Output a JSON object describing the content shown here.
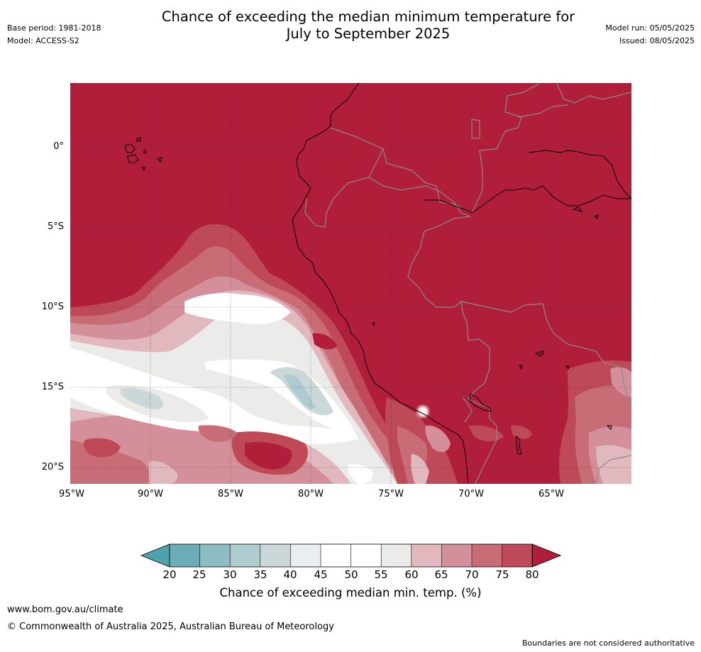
{
  "header": {
    "title_line1": "Chance of exceeding the median minimum temperature for",
    "title_line2": "July to September 2025",
    "base_period": "Base period: 1981-2018",
    "model": "Model: ACCESS-S2",
    "model_run": "Model run: 05/05/2025",
    "issued": "Issued: 08/05/2025"
  },
  "map": {
    "lat_labels": [
      "0°",
      "5°S",
      "10°S",
      "15°S",
      "20°S"
    ],
    "lon_labels": [
      "95°W",
      "90°W",
      "85°W",
      "80°W",
      "75°W",
      "70°W",
      "65°W"
    ],
    "lat_values": [
      0,
      -5,
      -10,
      -15,
      -20
    ],
    "lon_values": [
      -95,
      -90,
      -85,
      -80,
      -75,
      -70,
      -65
    ],
    "extent": {
      "lon_min": -95,
      "lon_max": -60,
      "lat_min": -21,
      "lat_max": 4
    }
  },
  "colorbar": {
    "ticks": [
      "20",
      "25",
      "30",
      "35",
      "40",
      "45",
      "50",
      "55",
      "60",
      "65",
      "70",
      "75",
      "80"
    ],
    "colors": [
      "#4ea2b0",
      "#6aadb9",
      "#8cbcc4",
      "#aecbd0",
      "#cad8da",
      "#e9eff1",
      "#ffffff",
      "#ffffff",
      "#ebebea",
      "#e0b8be",
      "#d4909a",
      "#c86c76",
      "#bd4a56",
      "#b11e3a"
    ],
    "title": "Chance of exceeding median min. temp. (%)"
  },
  "footer": {
    "website": "www.bom.gov.au/climate",
    "copyright": "© Commonwealth of Australia 2025, Australian Bureau of Meteorology",
    "disclaimer": "Boundaries are not considered authoritative"
  }
}
